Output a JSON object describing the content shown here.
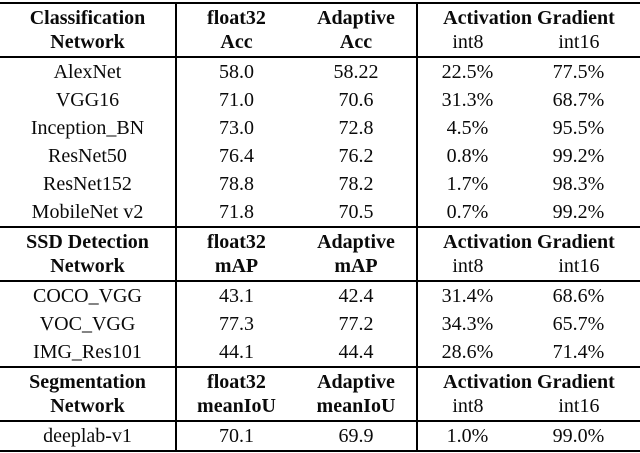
{
  "page": {
    "background": "#ffffff",
    "text_color": "#0a0a0a",
    "rule_color": "#000000"
  },
  "table": {
    "sections": [
      {
        "header": {
          "network_line1": "Classification",
          "network_line2": "Network",
          "float32_line1": "float32",
          "float32_line2": "Acc",
          "adaptive_line1": "Adaptive",
          "adaptive_line2": "Acc",
          "activation_gradient": "Activation Gradient",
          "int8": "int8",
          "int16": "int16"
        },
        "rows": [
          {
            "network": "AlexNet",
            "float32": "58.0",
            "adaptive": "58.22",
            "int8": "22.5%",
            "int16": "77.5%"
          },
          {
            "network": "VGG16",
            "float32": "71.0",
            "adaptive": "70.6",
            "int8": "31.3%",
            "int16": "68.7%"
          },
          {
            "network": "Inception_BN",
            "float32": "73.0",
            "adaptive": "72.8",
            "int8": "4.5%",
            "int16": "95.5%"
          },
          {
            "network": "ResNet50",
            "float32": "76.4",
            "adaptive": "76.2",
            "int8": "0.8%",
            "int16": "99.2%"
          },
          {
            "network": "ResNet152",
            "float32": "78.8",
            "adaptive": "78.2",
            "int8": "1.7%",
            "int16": "98.3%"
          },
          {
            "network": "MobileNet v2",
            "float32": "71.8",
            "adaptive": "70.5",
            "int8": "0.7%",
            "int16": "99.2%"
          }
        ]
      },
      {
        "header": {
          "network_line1": "SSD Detection",
          "network_line2": "Network",
          "float32_line1": "float32",
          "float32_line2": "mAP",
          "adaptive_line1": "Adaptive",
          "adaptive_line2": "mAP",
          "activation_gradient": "Activation Gradient",
          "int8": "int8",
          "int16": "int16"
        },
        "rows": [
          {
            "network": "COCO_VGG",
            "float32": "43.1",
            "adaptive": "42.4",
            "int8": "31.4%",
            "int16": "68.6%"
          },
          {
            "network": "VOC_VGG",
            "float32": "77.3",
            "adaptive": "77.2",
            "int8": "34.3%",
            "int16": "65.7%"
          },
          {
            "network": "IMG_Res101",
            "float32": "44.1",
            "adaptive": "44.4",
            "int8": "28.6%",
            "int16": "71.4%"
          }
        ]
      },
      {
        "header": {
          "network_line1": "Segmentation",
          "network_line2": "Network",
          "float32_line1": "float32",
          "float32_line2": "meanIoU",
          "adaptive_line1": "Adaptive",
          "adaptive_line2": "meanIoU",
          "activation_gradient": "Activation Gradient",
          "int8": "int8",
          "int16": "int16"
        },
        "rows": [
          {
            "network": "deeplab-v1",
            "float32": "70.1",
            "adaptive": "69.9",
            "int8": "1.0%",
            "int16": "99.0%"
          }
        ]
      }
    ]
  }
}
